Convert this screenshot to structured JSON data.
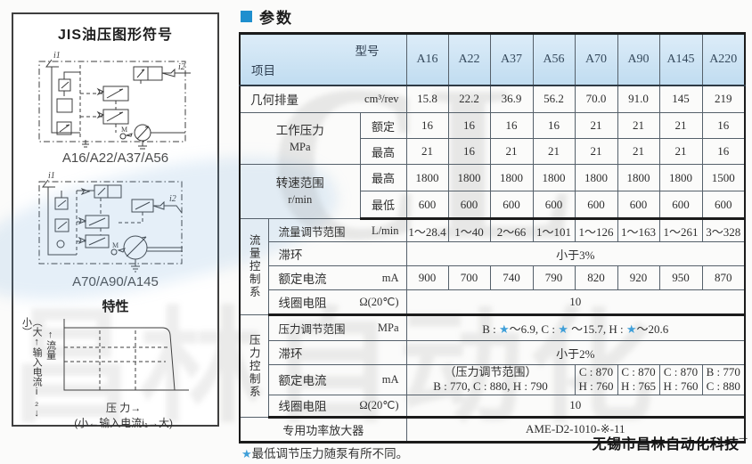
{
  "page": {
    "section_title": "参数",
    "footnote": "★最低调节压力随泵有所不同。",
    "vendor": "无锡市昌林自动化科技¯",
    "accent_blue": "#1f8fce",
    "header_blue": "#c8e0f2",
    "star_blue": "#3f9fd8"
  },
  "watermarks": {
    "big_letters": "CL",
    "big_text": "昌林自动化"
  },
  "panel": {
    "title": "JIS油压图形符号",
    "diagram1_label": "A16/A22/A37/A56",
    "diagram2_label": "A70/A90/A145",
    "characteristics": {
      "title": "特性",
      "y_axis_outer": "（大↑输入电流i₂↓小）",
      "y_axis_inner": "↑流量",
      "x_axis": "压 力→",
      "x_axis_sub": "(小←输入电流i₁→大)"
    },
    "diagram_labels": {
      "i1": "i1",
      "i2": "i2",
      "m": "M",
      "o": "O"
    }
  },
  "table": {
    "corner": {
      "top": "型号",
      "bottom": "项目"
    },
    "models": [
      "A16",
      "A22",
      "A37",
      "A56",
      "A70",
      "A90",
      "A145",
      "A220"
    ],
    "displacement": {
      "label": "几何排量",
      "unit": "cm³/rev",
      "values": [
        "15.8",
        "22.2",
        "36.9",
        "56.2",
        "70.0",
        "91.0",
        "145",
        "219"
      ]
    },
    "working_pressure": {
      "label": "工作压力",
      "unit": "MPa",
      "rated_label": "额定",
      "rated": [
        "16",
        "16",
        "16",
        "16",
        "21",
        "21",
        "21",
        "16"
      ],
      "max_label": "最高",
      "max": [
        "21",
        "16",
        "21",
        "21",
        "21",
        "21",
        "21",
        "16"
      ]
    },
    "speed_range": {
      "label": "转速范围",
      "unit": "r/min",
      "max_label": "最高",
      "max": [
        "1800",
        "1800",
        "1800",
        "1800",
        "1800",
        "1800",
        "1800",
        "1500"
      ],
      "min_label": "最低",
      "min": [
        "600",
        "600",
        "600",
        "600",
        "600",
        "600",
        "600",
        "600"
      ]
    },
    "flow": {
      "group": "流量控制系",
      "range": {
        "label": "流量调节范围",
        "unit": "L/min",
        "values": [
          "1～28.4",
          "1～40",
          "2～66",
          "1～101",
          "1～126",
          "1～163",
          "1～261",
          "3～328"
        ]
      },
      "hysteresis": {
        "label": "滞环",
        "value": "小于3%"
      },
      "current": {
        "label": "额定电流",
        "unit": "mA",
        "values": [
          "900",
          "700",
          "740",
          "790",
          "820",
          "920",
          "950",
          "870"
        ]
      },
      "resistance": {
        "label": "线圈电阻",
        "unit": "Ω(20℃)",
        "value": "10"
      }
    },
    "pressure": {
      "group": "压力控制系",
      "range": {
        "label": "压力调节范围",
        "unit": "MPa",
        "value": "B : ★～6.9, C : ★ ～15.7, H : ★～20.6"
      },
      "hysteresis": {
        "label": "滞环",
        "value": "小于2%"
      },
      "current": {
        "label": "额定电流",
        "unit": "mA",
        "span_line1": "（压力调节范围）",
        "span_line2": "B : 770, C : 880, H : 790",
        "cells": [
          {
            "l1": "C : 870",
            "l2": "H : 760"
          },
          {
            "l1": "C : 870",
            "l2": "H : 765"
          },
          {
            "l1": "C : 870",
            "l2": "H : 760"
          },
          {
            "l1": "B : 770",
            "l2": "C : 880"
          }
        ]
      },
      "resistance": {
        "label": "线圈电阻",
        "unit": "Ω(20℃)",
        "value": "10"
      }
    },
    "amplifier": {
      "label": "专用功率放大器",
      "value": "AME-D2-1010-※-11"
    }
  }
}
